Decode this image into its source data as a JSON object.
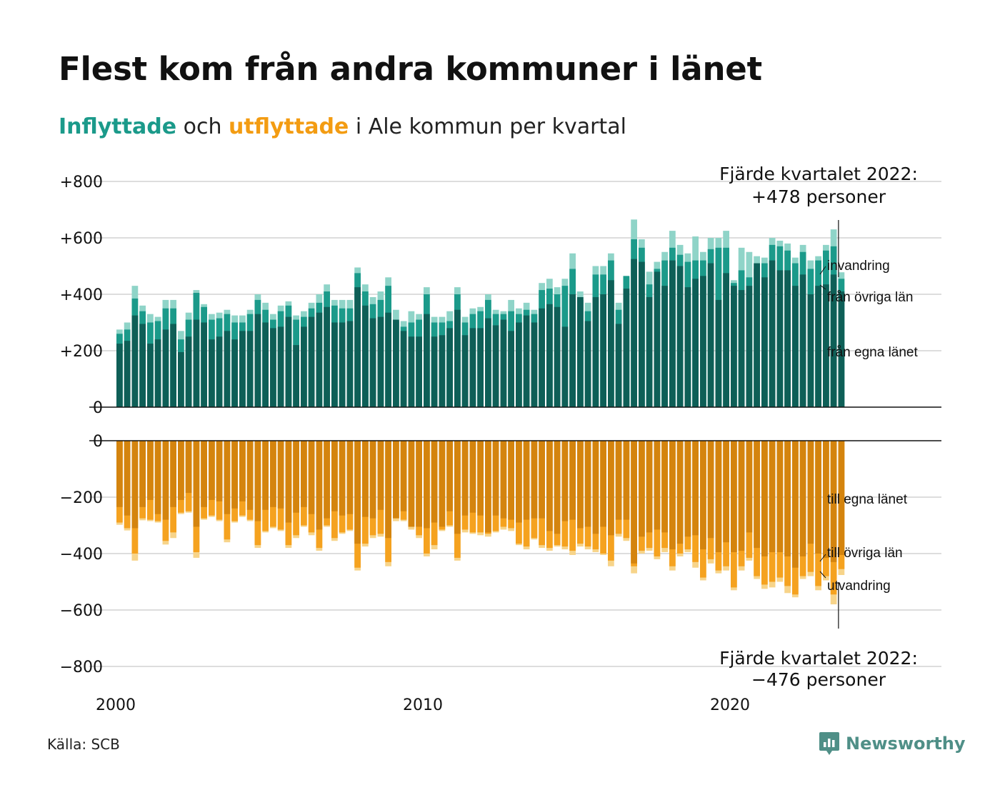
{
  "title": "Flest kom från andra kommuner i länet",
  "subtitle": {
    "in_word": "Inflyttade",
    "and_word": "och",
    "out_word": "utflyttade",
    "rest": "i Ale kommun per kvartal"
  },
  "source": "Källa: SCB",
  "logo": {
    "name": "Newsworthy",
    "icon": "newsworthy-logo-icon"
  },
  "colors": {
    "in_domestic": "#0e5f57",
    "in_other_counties": "#1b9a8a",
    "in_immigration": "#8fd4c8",
    "out_domestic": "#d4840e",
    "out_other_counties": "#f5a21f",
    "out_emigration": "#f7d48a"
  },
  "chart_data": {
    "type": "bar",
    "stacked": true,
    "x_start": 2000,
    "quarters_per_year": 4,
    "x_ticks": [
      2000,
      2010,
      2020
    ],
    "upper": {
      "y_ticks": [
        {
          "value": 800,
          "label": "+800"
        },
        {
          "value": 600,
          "label": "+600"
        },
        {
          "value": 400,
          "label": "+400"
        },
        {
          "value": 200,
          "label": "+200"
        },
        {
          "value": 0,
          "label": "0"
        }
      ],
      "ylim": [
        0,
        800
      ],
      "series_labels": [
        "invandring",
        "från övriga län",
        "från egna länet"
      ],
      "annotation": [
        "Fjärde kvartalet 2022:",
        "+478 personer"
      ],
      "total": [
        275,
        300,
        430,
        360,
        330,
        320,
        380,
        380,
        270,
        335,
        415,
        365,
        330,
        335,
        345,
        325,
        325,
        345,
        400,
        370,
        330,
        360,
        375,
        325,
        340,
        370,
        400,
        435,
        380,
        380,
        380,
        495,
        435,
        390,
        410,
        460,
        345,
        305,
        340,
        330,
        425,
        320,
        320,
        340,
        425,
        320,
        350,
        355,
        400,
        345,
        340,
        380,
        350,
        370,
        345,
        440,
        455,
        425,
        455,
        545,
        410,
        370,
        500,
        500,
        545,
        370,
        460,
        665,
        595,
        480,
        515,
        550,
        625,
        575,
        545,
        605,
        550,
        600,
        600,
        625,
        450,
        565,
        550,
        535,
        530,
        600,
        590,
        580,
        530,
        575,
        520,
        535,
        575,
        630,
        478
      ],
      "from_other_counties": [
        260,
        275,
        385,
        340,
        300,
        305,
        350,
        350,
        240,
        310,
        405,
        355,
        310,
        315,
        330,
        300,
        300,
        330,
        380,
        345,
        310,
        340,
        360,
        310,
        320,
        350,
        370,
        410,
        360,
        350,
        350,
        475,
        410,
        365,
        380,
        430,
        305,
        285,
        300,
        310,
        400,
        300,
        300,
        305,
        400,
        300,
        330,
        340,
        380,
        330,
        330,
        340,
        330,
        345,
        330,
        415,
        420,
        400,
        430,
        490,
        380,
        340,
        470,
        470,
        520,
        345,
        465,
        595,
        565,
        435,
        490,
        520,
        565,
        540,
        515,
        520,
        520,
        560,
        565,
        565,
        440,
        485,
        460,
        490,
        510,
        575,
        570,
        555,
        510,
        550,
        490,
        520,
        555,
        570,
        455
      ],
      "from_own_county": [
        225,
        235,
        325,
        295,
        225,
        240,
        275,
        295,
        195,
        250,
        310,
        300,
        240,
        250,
        270,
        240,
        270,
        270,
        330,
        300,
        280,
        285,
        320,
        220,
        285,
        320,
        335,
        355,
        300,
        300,
        305,
        425,
        360,
        315,
        320,
        335,
        310,
        270,
        250,
        250,
        330,
        250,
        255,
        280,
        345,
        255,
        280,
        280,
        315,
        290,
        310,
        270,
        300,
        325,
        300,
        350,
        365,
        355,
        285,
        400,
        390,
        305,
        390,
        400,
        450,
        295,
        420,
        525,
        515,
        390,
        480,
        430,
        520,
        500,
        425,
        455,
        465,
        510,
        380,
        475,
        430,
        415,
        430,
        510,
        460,
        520,
        485,
        485,
        430,
        470,
        400,
        430,
        435,
        470,
        410
      ]
    },
    "lower": {
      "y_ticks": [
        {
          "value": 0,
          "label": "0"
        },
        {
          "value": -200,
          "label": "−200"
        },
        {
          "value": -400,
          "label": "−400"
        },
        {
          "value": -600,
          "label": "−600"
        },
        {
          "value": -800,
          "label": "−800"
        }
      ],
      "ylim": [
        -800,
        0
      ],
      "series_labels": [
        "till egna länet",
        "till övriga län",
        "utvandring"
      ],
      "annotation": [
        "Fjärde kvartalet 2022:",
        "−476 personer"
      ],
      "total": [
        -298,
        -318,
        -425,
        -282,
        -285,
        -290,
        -368,
        -345,
        -260,
        -255,
        -415,
        -280,
        -270,
        -285,
        -360,
        -290,
        -270,
        -285,
        -380,
        -325,
        -310,
        -320,
        -380,
        -345,
        -305,
        -335,
        -390,
        -305,
        -355,
        -330,
        -320,
        -460,
        -375,
        -345,
        -340,
        -445,
        -285,
        -285,
        -315,
        -345,
        -410,
        -385,
        -320,
        -305,
        -425,
        -325,
        -330,
        -335,
        -340,
        -325,
        -315,
        -320,
        -370,
        -385,
        -350,
        -380,
        -390,
        -375,
        -385,
        -405,
        -375,
        -385,
        -395,
        -405,
        -445,
        -340,
        -355,
        -470,
        -400,
        -390,
        -420,
        -395,
        -460,
        -410,
        -395,
        -450,
        -495,
        -435,
        -470,
        -460,
        -530,
        -460,
        -425,
        -490,
        -525,
        -520,
        -500,
        -540,
        -555,
        -490,
        -480,
        -530,
        -495,
        -580,
        -476
      ],
      "to_other_counties": [
        -290,
        -310,
        -400,
        -275,
        -280,
        -285,
        -355,
        -325,
        -255,
        -250,
        -395,
        -275,
        -265,
        -280,
        -350,
        -285,
        -265,
        -280,
        -370,
        -320,
        -305,
        -315,
        -370,
        -335,
        -300,
        -325,
        -380,
        -300,
        -345,
        -325,
        -315,
        -450,
        -365,
        -335,
        -330,
        -430,
        -275,
        -280,
        -305,
        -335,
        -400,
        -370,
        -315,
        -300,
        -415,
        -315,
        -325,
        -325,
        -330,
        -320,
        -305,
        -310,
        -365,
        -375,
        -345,
        -370,
        -380,
        -370,
        -375,
        -390,
        -365,
        -375,
        -385,
        -400,
        -425,
        -330,
        -345,
        -445,
        -390,
        -380,
        -410,
        -380,
        -445,
        -400,
        -385,
        -430,
        -485,
        -420,
        -460,
        -445,
        -520,
        -445,
        -415,
        -480,
        -510,
        -500,
        -485,
        -515,
        -545,
        -480,
        -465,
        -515,
        -480,
        -545,
        -455
      ],
      "to_own_county": [
        -235,
        -265,
        -310,
        -235,
        -210,
        -260,
        -280,
        -235,
        -210,
        -185,
        -305,
        -235,
        -210,
        -215,
        -260,
        -240,
        -215,
        -245,
        -285,
        -245,
        -235,
        -240,
        -290,
        -255,
        -235,
        -260,
        -315,
        -275,
        -250,
        -265,
        -260,
        -365,
        -270,
        -275,
        -245,
        -345,
        -275,
        -250,
        -305,
        -305,
        -310,
        -290,
        -305,
        -250,
        -330,
        -265,
        -255,
        -265,
        -325,
        -265,
        -275,
        -280,
        -290,
        -280,
        -275,
        -275,
        -320,
        -330,
        -285,
        -280,
        -310,
        -305,
        -330,
        -305,
        -335,
        -280,
        -280,
        -435,
        -340,
        -325,
        -315,
        -325,
        -385,
        -365,
        -340,
        -335,
        -385,
        -345,
        -395,
        -360,
        -395,
        -390,
        -325,
        -380,
        -410,
        -395,
        -395,
        -410,
        -450,
        -410,
        -365,
        -400,
        -415,
        -430,
        -405
      ]
    }
  }
}
